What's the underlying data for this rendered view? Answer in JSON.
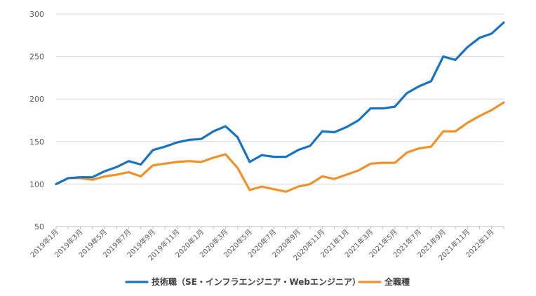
{
  "chart_data": {
    "type": "line",
    "title": "",
    "xlabel": "",
    "ylabel": "",
    "ylim": [
      50,
      300
    ],
    "y_ticks": [
      50,
      100,
      150,
      200,
      250,
      300
    ],
    "grid": true,
    "legend_position": "bottom",
    "x": [
      "2019年1月",
      "2019年2月",
      "2019年3月",
      "2019年4月",
      "2019年5月",
      "2019年6月",
      "2019年7月",
      "2019年8月",
      "2019年9月",
      "2019年10月",
      "2019年11月",
      "2019年12月",
      "2020年1月",
      "2020年2月",
      "2020年3月",
      "2020年4月",
      "2020年5月",
      "2020年6月",
      "2020年7月",
      "2020年8月",
      "2020年9月",
      "2020年10月",
      "2020年11月",
      "2020年12月",
      "2021年1月",
      "2021年2月",
      "2021年3月",
      "2021年4月",
      "2021年5月",
      "2021年6月",
      "2021年7月",
      "2021年8月",
      "2021年9月",
      "2021年10月",
      "2021年11月",
      "2021年12月",
      "2022年1月",
      "2022年2月"
    ],
    "x_tick_labels": [
      "2019年1月",
      "2019年3月",
      "2019年5月",
      "2019年7月",
      "2019年9月",
      "2019年11月",
      "2020年1月",
      "2020年3月",
      "2020年5月",
      "2020年7月",
      "2020年9月",
      "2020年11月",
      "2021年1月",
      "2021年3月",
      "2021年5月",
      "2021年7月",
      "2021年9月",
      "2021年11月",
      "2022年1月"
    ],
    "series": [
      {
        "name": "技術職（SE・インフラエンジニア・Webエンジニア）",
        "color": "#1a73c1",
        "values": [
          100,
          107,
          108,
          108,
          115,
          120,
          127,
          123,
          140,
          144,
          149,
          152,
          153,
          162,
          168,
          155,
          126,
          134,
          132,
          132,
          140,
          145,
          162,
          161,
          167,
          175,
          189,
          189,
          191,
          207,
          215,
          221,
          250,
          246,
          261,
          272,
          277,
          290
        ]
      },
      {
        "name": "全職種",
        "color": "#f0912a",
        "values": [
          100,
          107,
          107,
          105,
          109,
          111,
          114,
          109,
          122,
          124,
          126,
          127,
          126,
          131,
          135,
          119,
          93,
          97,
          94,
          91,
          97,
          100,
          109,
          106,
          111,
          116,
          124,
          125,
          125,
          137,
          142,
          144,
          162,
          162,
          172,
          180,
          187,
          196
        ]
      }
    ]
  }
}
